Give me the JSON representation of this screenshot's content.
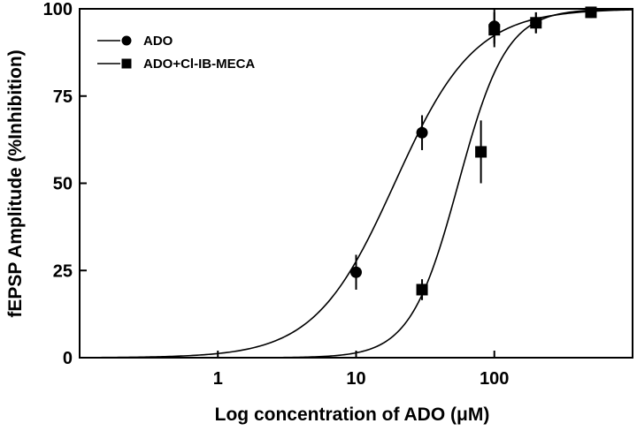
{
  "chart_data": {
    "type": "scatter",
    "title": "",
    "xlabel": "Log concentration of ADO (μM)",
    "ylabel": "fEPSP Amplitude (%Inhibition)",
    "xscale": "log",
    "xlim": [
      0.1,
      1000
    ],
    "ylim": [
      0,
      100
    ],
    "xticks": [
      1,
      10,
      100
    ],
    "xtick_labels": [
      "1",
      "10",
      "100"
    ],
    "yticks": [
      0,
      25,
      50,
      75,
      100
    ],
    "ytick_labels": [
      "0",
      "25",
      "50",
      "75",
      "100"
    ],
    "grid": false,
    "legend_position": "top-left",
    "series": [
      {
        "name": "ADO",
        "marker": "circle",
        "color": "#000000",
        "x": [
          10,
          30,
          100,
          200,
          500
        ],
        "y": [
          24.5,
          64.5,
          95,
          96,
          99
        ],
        "err": [
          5,
          5,
          5,
          3,
          0
        ],
        "fit": {
          "ec50": 19,
          "hill": 1.5
        }
      },
      {
        "name": "ADO+Cl-IB-MECA",
        "marker": "square",
        "color": "#000000",
        "x": [
          30,
          80,
          100,
          200,
          500
        ],
        "y": [
          19.5,
          59,
          94,
          96,
          99
        ],
        "err": [
          3,
          9,
          5,
          3,
          0
        ],
        "fit": {
          "ec50": 55,
          "hill": 2.5
        }
      }
    ]
  }
}
